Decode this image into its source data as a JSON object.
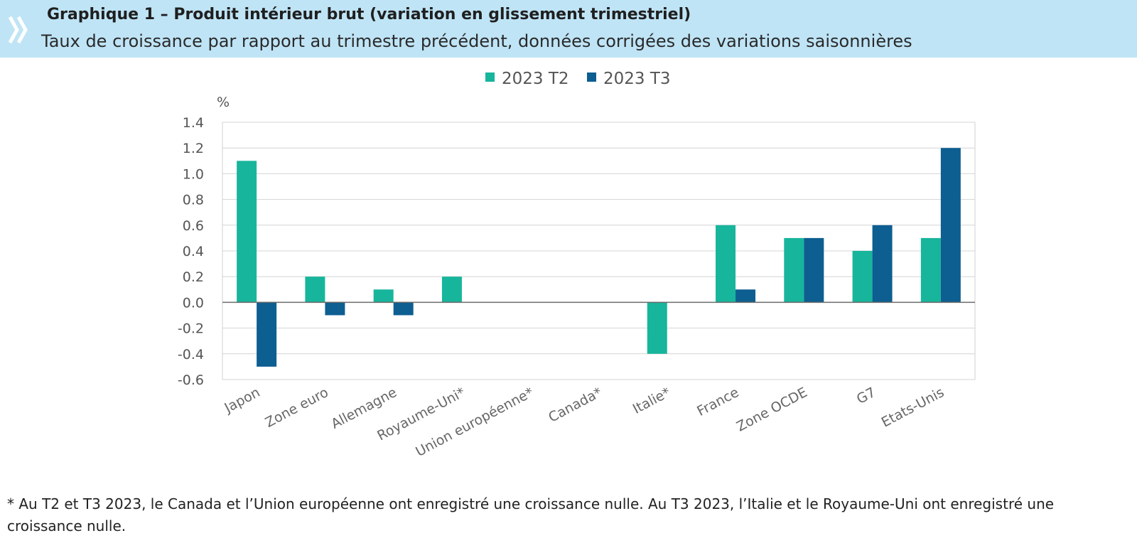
{
  "header": {
    "title": "Graphique 1 – Produit intérieur brut (variation en glissement trimestriel)",
    "subtitle": "Taux de croissance par rapport au trimestre précédent, données corrigées des variations saisonnières",
    "icon": "double-chevron-icon"
  },
  "chart_data": {
    "type": "bar",
    "unit_label": "%",
    "categories": [
      "Japon",
      "Zone euro",
      "Allemagne",
      "Royaume-Uni*",
      "Union européenne*",
      "Canada*",
      "Italie*",
      "France",
      "Zone OCDE",
      "G7",
      "Etats-Unis"
    ],
    "series": [
      {
        "name": "2023 T2",
        "color": "#17b59c",
        "values": [
          1.1,
          0.2,
          0.1,
          0.2,
          0.0,
          0.0,
          -0.4,
          0.6,
          0.5,
          0.4,
          0.5
        ]
      },
      {
        "name": "2023 T3",
        "color": "#0d5e91",
        "values": [
          -0.5,
          -0.1,
          -0.1,
          0.0,
          0.0,
          0.0,
          0.0,
          0.1,
          0.5,
          0.6,
          1.2
        ]
      }
    ],
    "yticks": [
      "1.4",
      "1.2",
      "1.0",
      "0.8",
      "0.6",
      "0.4",
      "0.2",
      "0.0",
      "-0.2",
      "-0.4",
      "-0.6"
    ],
    "ylim": [
      -0.6,
      1.4
    ],
    "grid": true,
    "legend_position": "top-center"
  },
  "footnote": "* Au T2 et T3 2023, le Canada et l’Union européenne ont enregistré une croissance nulle. Au T3 2023, l’Italie et le Royaume-Uni ont enregistré une croissance nulle."
}
